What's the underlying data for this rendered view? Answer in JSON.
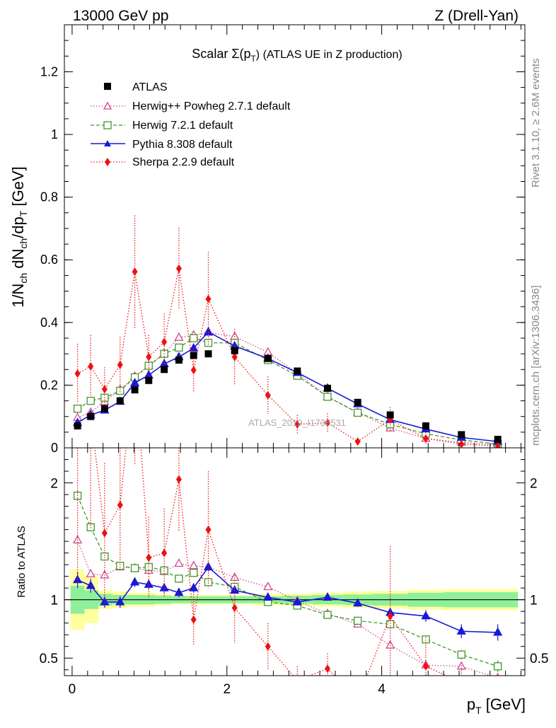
{
  "header": {
    "left": "13000 GeV pp",
    "right": "Z (Drell-Yan)"
  },
  "side_labels": {
    "rivet": "Rivet 3.1.10, ≥ 2.6M events",
    "mcplots": "mcplots.cern.ch [arXiv:1306.3436]"
  },
  "watermark": "ATLAS_2019_I1736531",
  "chart_data": {
    "type": "scatter",
    "title": "Scalar Σ(p_T) (ATLAS UE in Z production)",
    "title_parts": {
      "pre": "Scalar Σ(p",
      "sub": "T",
      "post": ") (ATLAS UE in Z production)"
    },
    "xlabel": "p_T [GeV]",
    "xlabel_parts": {
      "p": "p",
      "sub": "T",
      "post": " [GeV]"
    },
    "ylabel": "1/N_ch dN_ch/dp_T [GeV]",
    "ylabel_parts": {
      "a": "1/N",
      "a_sub": "ch",
      "b": " dN",
      "b_sub": "ch",
      "c": "/dp",
      "c_sub": "T",
      "d": " [GeV]"
    },
    "ratio_ylabel": "Ratio to ATLAS",
    "xlim": [
      -0.1,
      5.85
    ],
    "ylim": [
      0,
      1.35
    ],
    "ratio_ylim": [
      0.35,
      2.3
    ],
    "x_ticks": [
      0,
      2,
      4
    ],
    "x_tick_labels": [
      "0",
      "2",
      "4"
    ],
    "y_ticks": [
      0,
      0.2,
      0.4,
      0.6,
      0.8,
      1,
      1.2
    ],
    "y_tick_labels": [
      "0",
      "0.2",
      "0.4",
      "0.6",
      "0.8",
      "1",
      "1.2"
    ],
    "ratio_y_ticks": [
      0.5,
      1,
      2
    ],
    "ratio_y_tick_labels": [
      "0.5",
      "1",
      "2"
    ],
    "x": [
      0.07,
      0.24,
      0.42,
      0.62,
      0.81,
      0.99,
      1.19,
      1.38,
      1.57,
      1.76,
      2.1,
      2.53,
      2.91,
      3.3,
      3.69,
      4.11,
      4.57,
      5.03,
      5.5
    ],
    "x_edges": [
      -0.02,
      0.16,
      0.34,
      0.52,
      0.72,
      0.9,
      1.08,
      1.28,
      1.48,
      1.66,
      1.86,
      2.34,
      2.72,
      3.1,
      3.5,
      3.88,
      4.34,
      4.8,
      5.26,
      5.76
    ],
    "atlas": {
      "name": "ATLAS",
      "values": [
        0.07,
        0.1,
        0.125,
        0.15,
        0.185,
        0.215,
        0.25,
        0.28,
        0.295,
        0.3,
        0.31,
        0.285,
        0.245,
        0.19,
        0.145,
        0.105,
        0.07,
        0.042,
        0.027
      ],
      "band_stat": [
        0.12,
        0.08,
        0.05,
        0.04,
        0.04,
        0.04,
        0.035,
        0.03,
        0.03,
        0.03,
        0.03,
        0.03,
        0.035,
        0.04,
        0.045,
        0.05,
        0.06,
        0.065,
        0.065
      ],
      "band_total": [
        0.26,
        0.2,
        0.08,
        0.07,
        0.06,
        0.06,
        0.05,
        0.04,
        0.04,
        0.04,
        0.04,
        0.05,
        0.05,
        0.06,
        0.07,
        0.075,
        0.085,
        0.09,
        0.09
      ]
    },
    "series": [
      {
        "name": "Herwig++ Powheg 2.7.1 default",
        "color": "#d3488f",
        "marker": "triangle-open",
        "line": "dotted",
        "values": [
          0.096,
          0.113,
          0.147,
          0.185,
          0.228,
          0.262,
          0.302,
          0.352,
          0.36,
          0.368,
          0.355,
          0.305,
          0.238,
          0.163,
          0.113,
          0.063,
          0.03,
          0.017,
          0.009
        ],
        "ratio": [
          1.51,
          1.22,
          1.21,
          1.28,
          1.27,
          1.25,
          1.24,
          1.31,
          1.29,
          1.28,
          1.19,
          1.11,
          0.99,
          0.88,
          0.79,
          0.61,
          0.44,
          0.43,
          0.33
        ],
        "ratio_err": [
          0.03,
          0.02,
          0.02,
          0.02,
          0.02,
          0.02,
          0.02,
          0.02,
          0.02,
          0.02,
          0.02,
          0.02,
          0.02,
          0.02,
          0.02,
          0.03,
          0.02,
          0.02,
          0.02
        ]
      },
      {
        "name": "Herwig 7.2.1 default",
        "color": "#41982a",
        "marker": "square-open",
        "line": "dashed",
        "values": [
          0.125,
          0.15,
          0.16,
          0.182,
          0.225,
          0.262,
          0.3,
          0.32,
          0.35,
          0.335,
          0.335,
          0.28,
          0.23,
          0.163,
          0.112,
          0.075,
          0.045,
          0.025,
          0.012
        ],
        "ratio": [
          1.89,
          1.62,
          1.37,
          1.29,
          1.27,
          1.28,
          1.25,
          1.18,
          1.23,
          1.15,
          1.11,
          0.98,
          0.95,
          0.87,
          0.82,
          0.79,
          0.66,
          0.53,
          0.43
        ],
        "ratio_err": [
          0.04,
          0.03,
          0.03,
          0.03,
          0.02,
          0.02,
          0.02,
          0.02,
          0.02,
          0.02,
          0.02,
          0.02,
          0.02,
          0.02,
          0.02,
          0.02,
          0.03,
          0.04,
          0.05
        ]
      },
      {
        "name": "Pythia 8.308 default",
        "color": "#1919d6",
        "marker": "triangle-filled",
        "line": "solid",
        "values": [
          0.08,
          0.105,
          0.12,
          0.148,
          0.207,
          0.232,
          0.268,
          0.29,
          0.318,
          0.37,
          0.325,
          0.285,
          0.24,
          0.19,
          0.14,
          0.09,
          0.06,
          0.033,
          0.02
        ],
        "ratio": [
          1.17,
          1.12,
          0.98,
          0.98,
          1.15,
          1.13,
          1.1,
          1.06,
          1.1,
          1.28,
          1.08,
          1.02,
          0.98,
          1.02,
          0.97,
          0.89,
          0.86,
          0.73,
          0.72
        ],
        "ratio_err": [
          0.07,
          0.06,
          0.05,
          0.05,
          0.04,
          0.04,
          0.04,
          0.04,
          0.04,
          0.04,
          0.03,
          0.03,
          0.03,
          0.03,
          0.03,
          0.04,
          0.05,
          0.06,
          0.07
        ]
      },
      {
        "name": "Sherpa 2.2.9 default",
        "color": "#ee1111",
        "marker": "diamond-filled",
        "line": "dotted",
        "values": [
          0.237,
          0.26,
          0.187,
          0.265,
          0.562,
          0.29,
          0.338,
          0.572,
          0.248,
          0.475,
          0.29,
          0.168,
          0.075,
          0.08,
          0.02,
          0.09,
          0.03,
          0.012,
          0.006
        ],
        "err": [
          0.095,
          0.1,
          0.07,
          0.09,
          0.18,
          0.07,
          0.09,
          0.13,
          0.07,
          0.15,
          0.09,
          0.06,
          0.03,
          0.03,
          0.01,
          0.04,
          0.02,
          0.01,
          0.01
        ],
        "ratio": [
          2.45,
          2.6,
          1.57,
          1.81,
          3.05,
          1.36,
          1.4,
          2.03,
          0.83,
          1.6,
          0.93,
          0.6,
          0.31,
          0.41,
          0.14,
          0.86,
          0.43,
          0.29,
          0.22
        ],
        "ratio_err": [
          1.3,
          1.0,
          0.6,
          0.55,
          0.9,
          0.35,
          0.38,
          0.45,
          0.22,
          0.5,
          0.3,
          0.2,
          0.12,
          0.13,
          0.06,
          0.6,
          0.25,
          0.15,
          0.1
        ]
      }
    ]
  }
}
